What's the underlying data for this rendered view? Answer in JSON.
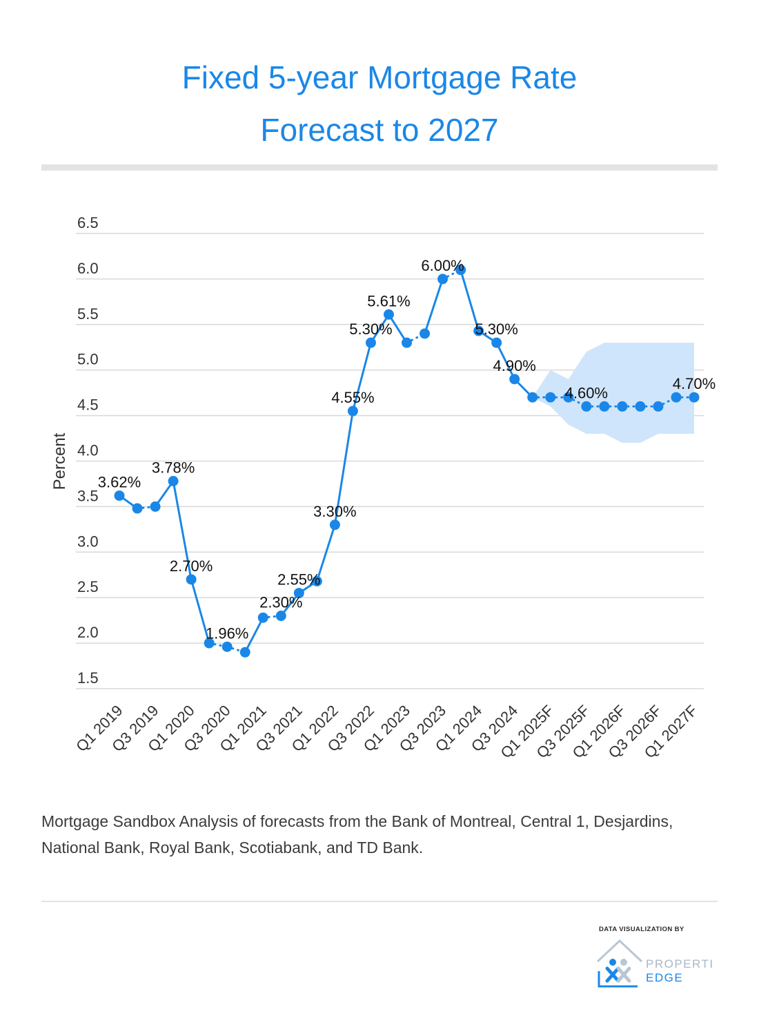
{
  "header": {
    "title_line1": "Fixed 5-year Mortgage Rate",
    "title_line2": "Forecast to 2027"
  },
  "source_note": "Mortgage Sandbox Analysis of forecasts from the Bank of Montreal, Central 1, Desjardins, National Bank, Royal Bank, Scotiabank, and TD Bank.",
  "credit": {
    "label": "DATA VISUALIZATION BY",
    "logo_line1": "PROPERTI",
    "logo_line2": "EDGE"
  },
  "colors": {
    "accent": "#1a87e8",
    "band": "#cfe5fb",
    "grid": "#d9d9d9"
  },
  "chart_data": {
    "type": "line",
    "ylabel": "Percent",
    "ylim": [
      1.5,
      6.5
    ],
    "yticks": [
      1.5,
      2.0,
      2.5,
      3.0,
      3.5,
      4.0,
      4.5,
      5.0,
      5.5,
      6.0,
      6.5
    ],
    "ytick_labels": [
      "1.5",
      "2.0",
      "2.5",
      "3.0",
      "3.5",
      "4.0",
      "4.5",
      "5.0",
      "5.5",
      "6.0",
      "6.5"
    ],
    "grid": true,
    "legend": "none",
    "x": [
      "Q1 2019",
      "Q2 2019",
      "Q3 2019",
      "Q4 2019",
      "Q1 2020",
      "Q2 2020",
      "Q3 2020",
      "Q4 2020",
      "Q1 2021",
      "Q2 2021",
      "Q3 2021",
      "Q4 2021",
      "Q1 2022",
      "Q2 2022",
      "Q3 2022",
      "Q4 2022",
      "Q1 2023",
      "Q2 2023",
      "Q3 2023",
      "Q4 2023",
      "Q1 2024",
      "Q2 2024",
      "Q3 2024",
      "Q4 2024",
      "Q1 2025F",
      "Q2 2025F",
      "Q3 2025F",
      "Q4 2025F",
      "Q1 2026F",
      "Q2 2026F",
      "Q3 2026F",
      "Q4 2026F",
      "Q1 2027F"
    ],
    "xtick_labels": [
      "Q1 2019",
      "Q3 2019",
      "Q1 2020",
      "Q3 2020",
      "Q1 2021",
      "Q3 2021",
      "Q1 2022",
      "Q3 2022",
      "Q1 2023",
      "Q3 2023",
      "Q1 2024",
      "Q3 2024",
      "Q1 2025F",
      "Q3 2025F",
      "Q1 2026F",
      "Q3 2026F",
      "Q1 2027F"
    ],
    "values": [
      3.62,
      3.48,
      3.5,
      3.78,
      2.7,
      2.0,
      1.96,
      1.9,
      2.28,
      2.3,
      2.55,
      2.68,
      3.3,
      4.55,
      5.3,
      5.61,
      5.3,
      5.4,
      6.0,
      6.1,
      5.43,
      5.3,
      4.9,
      4.7,
      4.7,
      4.7,
      4.6,
      4.6,
      4.6,
      4.6,
      4.6,
      4.7,
      4.7
    ],
    "data_labels": [
      {
        "index": 0,
        "text": "3.62%"
      },
      {
        "index": 3,
        "text": "3.78%"
      },
      {
        "index": 4,
        "text": "2.70%"
      },
      {
        "index": 6,
        "text": "1.96%"
      },
      {
        "index": 9,
        "text": "2.30%"
      },
      {
        "index": 10,
        "text": "2.55%"
      },
      {
        "index": 12,
        "text": "3.30%"
      },
      {
        "index": 13,
        "text": "4.55%"
      },
      {
        "index": 14,
        "text": "5.30%"
      },
      {
        "index": 15,
        "text": "5.61%"
      },
      {
        "index": 18,
        "text": "6.00%"
      },
      {
        "index": 21,
        "text": "5.30%"
      },
      {
        "index": 22,
        "text": "4.90%"
      },
      {
        "index": 26,
        "text": "4.60%"
      },
      {
        "index": 32,
        "text": "4.70%"
      }
    ],
    "forecast_range": {
      "start_index": 23,
      "upper": [
        4.7,
        5.0,
        4.9,
        5.2,
        5.3,
        5.3,
        5.3,
        5.3,
        5.3,
        5.3
      ],
      "lower": [
        4.7,
        4.6,
        4.4,
        4.3,
        4.3,
        4.2,
        4.2,
        4.3,
        4.3,
        4.3
      ]
    }
  }
}
